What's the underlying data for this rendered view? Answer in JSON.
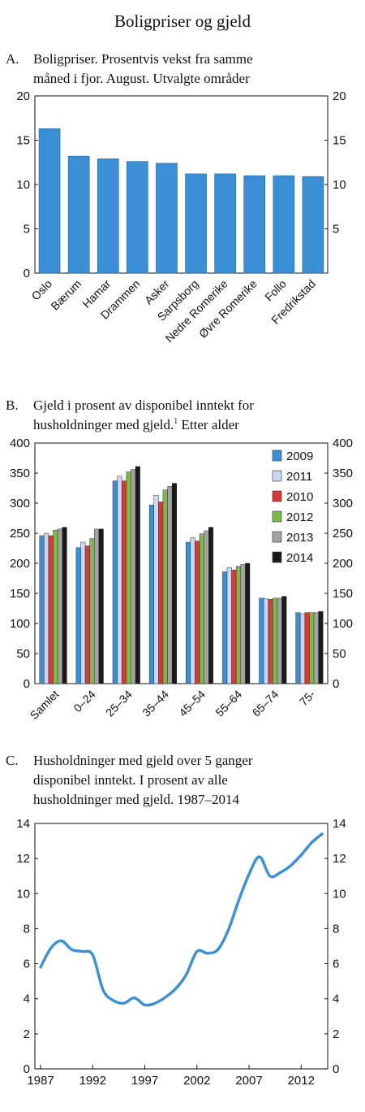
{
  "page_title": "Boligpriser og gjeld",
  "colors": {
    "bar_blue": "#3a8fd6",
    "line_blue": "#3a8fd6",
    "series": [
      "#3a8fd6",
      "#c9d8f0",
      "#d83a3a",
      "#7cb84a",
      "#a3a3a3",
      "#1a1a1a"
    ]
  },
  "chart_data": [
    {
      "type": "bar",
      "title_letter": "A.",
      "title_line1": "Boligpriser. Prosentvis vekst fra samme",
      "title_line2": "måned i fjor. August. Utvalgte områder",
      "categories": [
        "Oslo",
        "Bærum",
        "Hamar",
        "Drammen",
        "Asker",
        "Sarpsborg",
        "Nedre Romerike",
        "Øvre Romerike",
        "Follo",
        "Fredrikstad"
      ],
      "values": [
        16.3,
        13.2,
        12.9,
        12.6,
        12.4,
        11.2,
        11.2,
        11.0,
        11.0,
        10.9
      ],
      "ylim": [
        0,
        20
      ],
      "left_ticks": [
        "0",
        "5",
        "10",
        "15",
        "20"
      ],
      "right_ticks": [
        "5",
        "10",
        "15",
        "20"
      ]
    },
    {
      "type": "bar",
      "title_letter": "B.",
      "title_line1": "Gjeld i prosent av disponibel inntekt for",
      "title_line2_pre": "husholdninger med gjeld.",
      "title_line2_sup": "1",
      "title_line2_post": " Etter alder",
      "categories": [
        "Samlet",
        "0–24",
        "25–34",
        "35–44",
        "45–54",
        "55–64",
        "65–74",
        "75-"
      ],
      "series": [
        {
          "name": "2009",
          "values": [
            246,
            226,
            337,
            297,
            235,
            186,
            142,
            118
          ]
        },
        {
          "name": "2011",
          "values": [
            250,
            235,
            345,
            313,
            243,
            193,
            141,
            116
          ]
        },
        {
          "name": "2010",
          "values": [
            246,
            229,
            337,
            302,
            237,
            189,
            140,
            118
          ]
        },
        {
          "name": "2012",
          "values": [
            255,
            241,
            352,
            322,
            249,
            195,
            142,
            118
          ]
        },
        {
          "name": "2013",
          "values": [
            257,
            257,
            356,
            328,
            254,
            198,
            142,
            118
          ]
        },
        {
          "name": "2014",
          "values": [
            260,
            257,
            361,
            333,
            260,
            200,
            145,
            120
          ]
        }
      ],
      "ylim": [
        0,
        400
      ],
      "left_ticks": [
        "0",
        "50",
        "100",
        "150",
        "200",
        "250",
        "300",
        "350",
        "400"
      ],
      "right_ticks": [
        "0",
        "50",
        "100",
        "150",
        "200",
        "250",
        "300",
        "350",
        "400"
      ],
      "legend_placement": "top-right"
    },
    {
      "type": "line",
      "title_letter": "C.",
      "title_line1": "Husholdninger med gjeld over 5 ganger",
      "title_line2": "disponibel inntekt. I prosent av alle",
      "title_line3": "husholdninger med gjeld. 1987–2014",
      "x": [
        1987,
        1988,
        1989,
        1990,
        1991,
        1992,
        1993,
        1994,
        1995,
        1996,
        1997,
        1998,
        1999,
        2000,
        2001,
        2002,
        2003,
        2004,
        2005,
        2006,
        2007,
        2008,
        2009,
        2010,
        2011,
        2012,
        2013,
        2014
      ],
      "values": [
        5.8,
        6.9,
        7.3,
        6.8,
        6.7,
        6.5,
        4.5,
        3.9,
        3.75,
        4.05,
        3.65,
        3.75,
        4.1,
        4.6,
        5.4,
        6.7,
        6.6,
        6.8,
        7.9,
        9.6,
        11.1,
        12.1,
        11.0,
        11.2,
        11.6,
        12.2,
        12.9,
        13.4
      ],
      "xlim": [
        1987,
        2014
      ],
      "ylim": [
        0,
        14
      ],
      "x_ticks": [
        "1987",
        "1992",
        "1997",
        "2002",
        "2007",
        "2012"
      ],
      "left_ticks": [
        "0",
        "2",
        "4",
        "6",
        "8",
        "10",
        "12",
        "14"
      ],
      "right_ticks": [
        "0",
        "2",
        "4",
        "6",
        "8",
        "10",
        "12",
        "14"
      ]
    }
  ]
}
